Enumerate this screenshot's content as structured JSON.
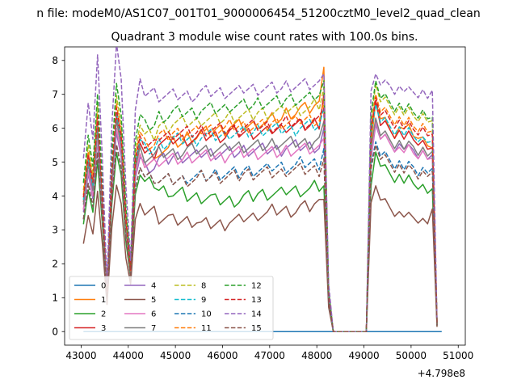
{
  "figure": {
    "suptitle": "n file: modeM0/AS1C07_001T01_9000006454_51200cztM0_level2_quad_clean",
    "x_offset_label": "+4.798e8"
  },
  "chart_data": {
    "type": "line",
    "title": "Quadrant 3 module wise count rates with 100.0s bins.",
    "xlabel": "",
    "ylabel": "",
    "xlim": [
      42650,
      51150
    ],
    "ylim": [
      -0.4,
      8.4
    ],
    "x_ticks": [
      43000,
      44000,
      45000,
      46000,
      47000,
      48000,
      49000,
      50000,
      51000
    ],
    "x_tick_labels": [
      "43000",
      "44000",
      "45000",
      "46000",
      "47000",
      "48000",
      "49000",
      "50000",
      "51000"
    ],
    "y_ticks": [
      0,
      1,
      2,
      3,
      4,
      5,
      6,
      7,
      8
    ],
    "y_tick_labels": [
      "0",
      "1",
      "2",
      "3",
      "4",
      "5",
      "6",
      "7",
      "8"
    ],
    "grid": false,
    "legend": {
      "position": "lower-left",
      "columns": 4
    },
    "x_segments": [
      {
        "start": 43050,
        "end": 48250,
        "step": 100
      },
      {
        "start": 48350,
        "end": 49150,
        "step": 100
      },
      {
        "start": 49250,
        "end": 50650,
        "step": 100
      }
    ],
    "series": [
      {
        "name": "0",
        "color": "#1f77b4",
        "dash": "solid",
        "constant": 0
      },
      {
        "name": "1",
        "color": "#ff7f0e",
        "dash": "solid",
        "dip1": 1.2,
        "dip2": 1.8,
        "seg1": [
          5.0,
          5.4,
          5.6,
          5.8,
          5.9,
          6.0,
          6.1,
          6.1,
          6.2,
          6.3,
          6.5,
          6.6,
          6.7,
          7.8
        ],
        "seg3": [
          5.5,
          6.8,
          6.4,
          6.2,
          6.0,
          5.9,
          6.0,
          6.1,
          6.0,
          5.8,
          5.9,
          5.7,
          5.6,
          5.3
        ]
      },
      {
        "name": "2",
        "color": "#2ca02c",
        "dash": "solid",
        "dip1": 0.9,
        "dip2": 1.6,
        "seg1": [
          4.4,
          4.2,
          4.1,
          4.0,
          4.0,
          3.9,
          3.9,
          4.0,
          4.1,
          4.1,
          4.2,
          4.2,
          4.3,
          4.3
        ],
        "seg3": [
          4.3,
          5.3,
          5.0,
          4.8,
          4.7,
          4.6,
          4.6,
          4.5,
          4.5,
          4.4,
          4.4,
          4.3,
          4.2,
          4.1
        ]
      },
      {
        "name": "3",
        "color": "#d62728",
        "dash": "solid",
        "dip1": 1.2,
        "dip2": 1.8,
        "seg1": [
          5.3,
          5.6,
          5.7,
          5.7,
          5.8,
          5.8,
          5.9,
          5.9,
          5.9,
          6.0,
          6.1,
          6.1,
          6.2,
          7.0
        ],
        "seg3": [
          6.0,
          6.8,
          6.2,
          6.1,
          6.0,
          5.9,
          5.9,
          5.8,
          5.8,
          5.7,
          5.7,
          5.6,
          5.5,
          5.3
        ]
      },
      {
        "name": "4",
        "color": "#9467bd",
        "dash": "solid",
        "dip1": 1.1,
        "dip2": 1.7,
        "seg1": [
          4.9,
          5.1,
          5.2,
          5.2,
          5.3,
          5.3,
          5.3,
          5.4,
          5.4,
          5.4,
          5.5,
          5.5,
          5.5,
          6.0
        ],
        "seg3": [
          5.1,
          6.1,
          5.8,
          5.7,
          5.6,
          5.5,
          5.5,
          5.5,
          5.4,
          5.4,
          5.3,
          5.3,
          5.2,
          5.1
        ]
      },
      {
        "name": "5",
        "color": "#8c564b",
        "dash": "solid",
        "dip1": 0.8,
        "dip2": 1.4,
        "seg1": [
          3.6,
          3.4,
          3.3,
          3.3,
          3.2,
          3.2,
          3.3,
          3.4,
          3.5,
          3.6,
          3.6,
          3.7,
          3.8,
          3.9
        ],
        "seg3": [
          3.8,
          4.3,
          4.0,
          3.8,
          3.7,
          3.6,
          3.5,
          3.5,
          3.4,
          3.4,
          3.4,
          3.3,
          3.3,
          3.5
        ]
      },
      {
        "name": "6",
        "color": "#e377c2",
        "dash": "solid",
        "dip1": 1.1,
        "dip2": 1.7,
        "seg1": [
          5.0,
          5.1,
          5.1,
          5.2,
          5.2,
          5.2,
          5.3,
          5.3,
          5.3,
          5.3,
          5.4,
          5.4,
          5.4,
          5.7
        ],
        "seg3": [
          5.1,
          6.2,
          5.8,
          5.7,
          5.6,
          5.5,
          5.4,
          5.4,
          5.4,
          5.3,
          5.3,
          5.3,
          5.2,
          5.0
        ]
      },
      {
        "name": "7",
        "color": "#7f7f7f",
        "dash": "solid",
        "dip1": 1.1,
        "dip2": 1.7,
        "seg1": [
          5.2,
          5.3,
          5.3,
          5.4,
          5.4,
          5.4,
          5.5,
          5.5,
          5.5,
          5.6,
          5.6,
          5.6,
          5.7,
          6.2
        ],
        "seg3": [
          5.4,
          6.3,
          5.9,
          5.8,
          5.7,
          5.6,
          5.6,
          5.5,
          5.5,
          5.5,
          5.4,
          5.4,
          5.3,
          5.2
        ]
      },
      {
        "name": "8",
        "color": "#bcbd22",
        "dash": "dash",
        "dip1": 1.3,
        "dip2": 1.9,
        "seg1": [
          5.8,
          6.1,
          6.2,
          6.2,
          6.3,
          6.3,
          6.4,
          6.4,
          6.5,
          6.5,
          6.6,
          6.6,
          6.7,
          7.2
        ],
        "seg3": [
          6.2,
          7.3,
          6.9,
          6.8,
          6.7,
          6.6,
          6.6,
          6.5,
          6.5,
          6.4,
          6.4,
          6.4,
          6.3,
          6.1
        ]
      },
      {
        "name": "9",
        "color": "#17becf",
        "dash": "dash",
        "dip1": 1.2,
        "dip2": 1.8,
        "seg1": [
          5.4,
          5.6,
          5.7,
          5.7,
          5.8,
          5.8,
          5.9,
          5.9,
          6.0,
          6.0,
          6.0,
          6.1,
          6.1,
          6.6
        ],
        "seg3": [
          5.8,
          6.7,
          6.3,
          6.2,
          6.1,
          6.0,
          6.0,
          5.9,
          5.9,
          5.8,
          5.8,
          5.7,
          5.7,
          5.5
        ]
      },
      {
        "name": "10",
        "color": "#1f77b4",
        "dash": "dash",
        "dip1": 1.0,
        "dip2": 1.6,
        "seg1": [
          4.6,
          4.5,
          4.5,
          4.6,
          4.6,
          4.7,
          4.7,
          4.8,
          4.8,
          4.9,
          4.9,
          5.0,
          5.0,
          5.4
        ],
        "seg3": [
          4.9,
          5.6,
          5.3,
          5.2,
          5.1,
          5.0,
          5.0,
          4.9,
          4.9,
          4.9,
          4.8,
          4.8,
          4.8,
          4.7
        ]
      },
      {
        "name": "11",
        "color": "#ff7f0e",
        "dash": "dash",
        "dip1": 1.2,
        "dip2": 1.8,
        "seg1": [
          5.6,
          5.8,
          5.9,
          5.9,
          6.0,
          6.0,
          6.1,
          6.1,
          6.1,
          6.2,
          6.2,
          6.3,
          6.3,
          6.8
        ],
        "seg3": [
          6.0,
          7.0,
          6.6,
          6.5,
          6.4,
          6.3,
          6.3,
          6.2,
          6.2,
          6.1,
          6.1,
          6.1,
          6.0,
          5.8
        ]
      },
      {
        "name": "12",
        "color": "#2ca02c",
        "dash": "dash",
        "dip1": 1.3,
        "dip2": 1.9,
        "seg1": [
          6.1,
          6.4,
          6.5,
          6.5,
          6.6,
          6.6,
          6.7,
          6.7,
          6.8,
          6.8,
          6.9,
          6.9,
          7.0,
          7.4
        ],
        "seg3": [
          6.4,
          7.4,
          7.0,
          6.9,
          6.8,
          6.7,
          6.7,
          6.6,
          6.6,
          6.5,
          6.5,
          6.5,
          6.4,
          6.2
        ]
      },
      {
        "name": "13",
        "color": "#d62728",
        "dash": "dash",
        "dip1": 1.2,
        "dip2": 1.8,
        "seg1": [
          5.5,
          5.8,
          5.9,
          5.9,
          6.0,
          6.0,
          6.0,
          6.1,
          6.1,
          6.1,
          6.2,
          6.2,
          6.2,
          6.6
        ],
        "seg3": [
          5.9,
          6.9,
          6.5,
          6.4,
          6.3,
          6.2,
          6.2,
          6.1,
          6.1,
          6.0,
          6.0,
          6.0,
          5.9,
          5.7
        ]
      },
      {
        "name": "14",
        "color": "#9467bd",
        "dash": "dash",
        "dip1": 1.4,
        "dip2": 2.1,
        "seg1": [
          7.1,
          7.0,
          7.0,
          7.0,
          7.1,
          7.1,
          7.1,
          7.2,
          7.2,
          7.2,
          7.3,
          7.3,
          7.3,
          7.6
        ],
        "seg3": [
          7.1,
          7.6,
          7.4,
          7.3,
          7.3,
          7.2,
          7.2,
          7.2,
          7.1,
          7.1,
          7.1,
          7.1,
          7.0,
          7.0
        ]
      },
      {
        "name": "15",
        "color": "#8c564b",
        "dash": "dash",
        "dip1": 1.0,
        "dip2": 1.6,
        "seg1": [
          4.6,
          4.5,
          4.5,
          4.5,
          4.6,
          4.6,
          4.6,
          4.7,
          4.7,
          4.7,
          4.8,
          4.8,
          4.8,
          5.1
        ],
        "seg3": [
          4.8,
          5.5,
          5.2,
          5.1,
          5.0,
          4.9,
          4.9,
          4.8,
          4.8,
          4.8,
          4.7,
          4.7,
          4.7,
          4.6
        ]
      }
    ]
  }
}
